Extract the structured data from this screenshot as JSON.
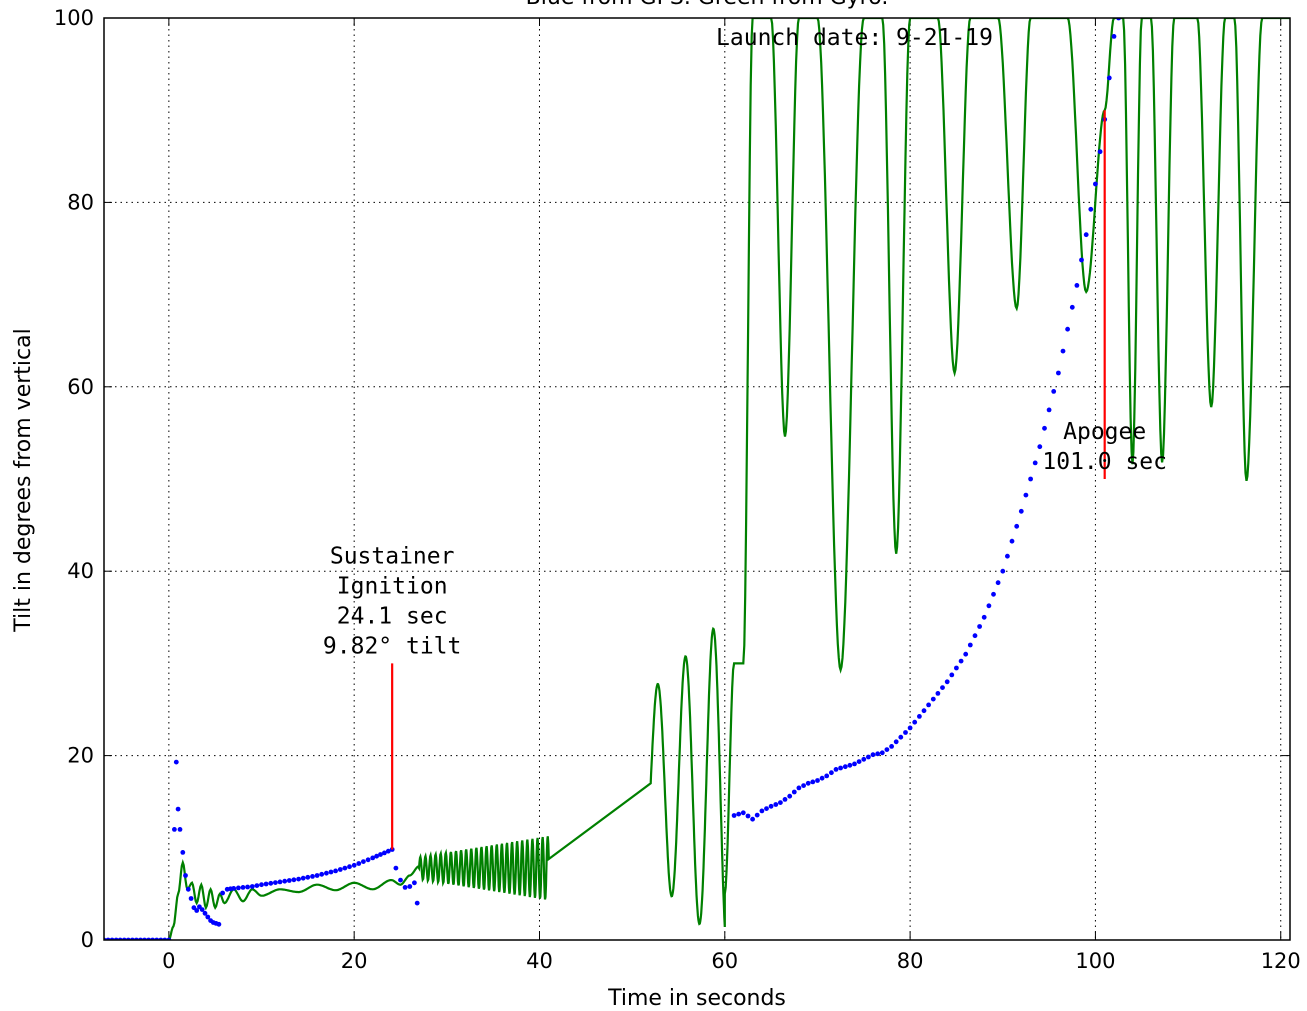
{
  "chart_data": {
    "type": "line",
    "title": "Blue from GPS.     Green from Gyro.",
    "xlabel": "Time in seconds",
    "ylabel": "Tilt in degrees from vertical",
    "xlim": [
      -7,
      121
    ],
    "ylim": [
      0,
      100
    ],
    "x_ticks": [
      0,
      20,
      40,
      60,
      80,
      100,
      120
    ],
    "y_ticks": [
      0,
      20,
      40,
      60,
      80,
      100
    ],
    "grid": true,
    "series": [
      {
        "kind": "scatter",
        "color": "#0000ff",
        "points": [
          [
            -7,
            0
          ],
          [
            0,
            0
          ],
          [
            0.6,
            12
          ],
          [
            0.8,
            19.3
          ],
          [
            1.0,
            14.2
          ],
          [
            1.2,
            12
          ],
          [
            1.5,
            9.5
          ],
          [
            1.8,
            7
          ],
          [
            2.1,
            5.5
          ],
          [
            2.4,
            4.5
          ],
          [
            2.7,
            3.5
          ],
          [
            3.0,
            3.2
          ],
          [
            3.3,
            3.6
          ],
          [
            3.6,
            3.3
          ],
          [
            3.9,
            2.9
          ],
          [
            4.2,
            2.5
          ],
          [
            4.5,
            2.1
          ],
          [
            4.8,
            1.9
          ],
          [
            5.1,
            1.8
          ],
          [
            5.4,
            1.7
          ],
          [
            5.8,
            5.1
          ],
          [
            6.3,
            5.5
          ],
          [
            7,
            5.6
          ],
          [
            8,
            5.7
          ],
          [
            9,
            5.8
          ],
          [
            10,
            6.0
          ],
          [
            12,
            6.3
          ],
          [
            14,
            6.6
          ],
          [
            16,
            7.0
          ],
          [
            18,
            7.5
          ],
          [
            20,
            8.1
          ],
          [
            22,
            8.9
          ],
          [
            24.1,
            9.82
          ],
          [
            24.5,
            7.8
          ],
          [
            25,
            6.5
          ],
          [
            25.5,
            5.7
          ],
          [
            26,
            5.8
          ],
          [
            26.5,
            6.2
          ],
          [
            26.8,
            4
          ]
        ]
      },
      {
        "kind": "scatter",
        "color": "#0000ff",
        "points": [
          [
            61,
            13.5
          ],
          [
            62,
            13.8
          ],
          [
            63,
            13.1
          ],
          [
            64,
            14.0
          ],
          [
            65,
            14.5
          ],
          [
            66,
            14.9
          ],
          [
            67,
            15.6
          ],
          [
            68,
            16.5
          ],
          [
            69,
            17.0
          ],
          [
            70,
            17.3
          ],
          [
            71,
            17.8
          ],
          [
            72,
            18.5
          ],
          [
            73,
            18.8
          ],
          [
            74,
            19.1
          ],
          [
            75,
            19.6
          ],
          [
            76,
            20.1
          ],
          [
            77,
            20.3
          ],
          [
            78,
            21.0
          ],
          [
            79,
            22.0
          ],
          [
            80,
            23.0
          ],
          [
            82,
            25.5
          ],
          [
            84,
            28.0
          ],
          [
            86,
            31.0
          ],
          [
            88,
            35.0
          ],
          [
            90,
            40.0
          ],
          [
            92,
            46.5
          ],
          [
            94,
            53.5
          ],
          [
            96,
            61.5
          ],
          [
            98,
            71.0
          ],
          [
            100,
            82.0
          ],
          [
            101,
            89.0
          ],
          [
            102,
            98.0
          ],
          [
            102.5,
            100
          ]
        ]
      },
      {
        "kind": "line",
        "color": "#008000",
        "peaks": [
          [
            -7,
            0
          ],
          [
            0,
            0
          ],
          [
            0.5,
            1.5
          ],
          [
            1,
            5
          ],
          [
            1.5,
            8.4
          ],
          [
            2,
            5.5
          ],
          [
            2.5,
            6.2
          ],
          [
            3,
            4
          ],
          [
            3.5,
            6
          ],
          [
            4,
            3.5
          ],
          [
            4.5,
            5.5
          ],
          [
            5,
            3.5
          ],
          [
            5.5,
            5
          ],
          [
            6,
            4
          ],
          [
            7,
            5.5
          ],
          [
            8,
            4.2
          ],
          [
            9,
            5.5
          ],
          [
            10,
            4.8
          ],
          [
            12,
            5.5
          ],
          [
            14,
            5.2
          ],
          [
            16,
            6
          ],
          [
            18,
            5.4
          ],
          [
            20,
            6.2
          ],
          [
            22,
            5.5
          ],
          [
            24,
            6.5
          ],
          [
            25,
            6
          ],
          [
            26,
            7
          ],
          [
            27,
            8
          ],
          [
            28,
            7.5
          ],
          [
            29,
            8
          ],
          [
            30,
            7.5
          ],
          [
            32,
            8
          ],
          [
            34,
            8
          ],
          [
            36,
            8
          ],
          [
            38,
            7.8
          ],
          [
            40,
            8
          ],
          [
            42,
            8
          ],
          [
            44,
            8
          ],
          [
            46,
            8
          ],
          [
            48,
            8
          ],
          [
            50,
            9
          ],
          [
            52,
            9
          ],
          [
            54,
            10
          ],
          [
            56,
            10
          ],
          [
            58,
            10
          ],
          [
            60,
            5
          ],
          [
            61,
            30
          ],
          [
            62,
            30
          ],
          [
            63,
            100
          ],
          [
            65,
            100
          ],
          [
            66.5,
            54.6
          ],
          [
            68,
            100
          ],
          [
            70,
            100
          ],
          [
            72.5,
            29.3
          ],
          [
            75,
            100
          ],
          [
            77,
            100
          ],
          [
            78.5,
            41.9
          ],
          [
            80,
            100
          ],
          [
            83,
            100
          ],
          [
            84.8,
            61.5
          ],
          [
            86.5,
            100
          ],
          [
            89.5,
            100
          ],
          [
            91.5,
            68.5
          ],
          [
            93,
            100
          ],
          [
            97,
            100
          ],
          [
            99,
            70.3
          ],
          [
            101,
            90
          ],
          [
            102,
            100
          ],
          [
            103,
            100
          ],
          [
            104,
            51.6
          ],
          [
            105,
            100
          ],
          [
            106,
            100
          ],
          [
            107.2,
            51.8
          ],
          [
            108.5,
            100
          ],
          [
            111,
            100
          ],
          [
            112.5,
            57.8
          ],
          [
            114,
            100
          ],
          [
            115,
            100
          ],
          [
            116.3,
            49.8
          ],
          [
            118,
            100
          ],
          [
            121,
            100
          ]
        ],
        "oscillation_segments": [
          {
            "range": [
              27,
              41
            ],
            "center": 7.8,
            "amplitude": [
              1.2,
              3.5
            ],
            "period": 0.55
          },
          {
            "range": [
              41,
              52
            ],
            "center": 9.5,
            "amplitude": [
              5,
              10.5
            ],
            "period": 1.5
          },
          {
            "range": [
              52,
              60
            ],
            "center": 17,
            "amplitude": [
              10,
              18
            ],
            "period": 3.0
          }
        ]
      }
    ],
    "vlines": [
      {
        "x": 24.1,
        "y": [
          9.82,
          30
        ],
        "color": "#ff0000"
      },
      {
        "x": 101.0,
        "y": [
          50,
          90
        ],
        "color": "#ff0000"
      }
    ],
    "annotations": [
      {
        "lines": [
          "Sustainer",
          "Ignition",
          "24.1 sec",
          "9.82° tilt"
        ],
        "x": 24.1,
        "y": 30
      },
      {
        "lines": [
          "Apogee",
          "101.0 sec"
        ],
        "x": 101.0,
        "y": 50
      },
      {
        "lines": [
          "Launch date: 9-21-19"
        ],
        "x": 74,
        "y": 96
      }
    ]
  }
}
